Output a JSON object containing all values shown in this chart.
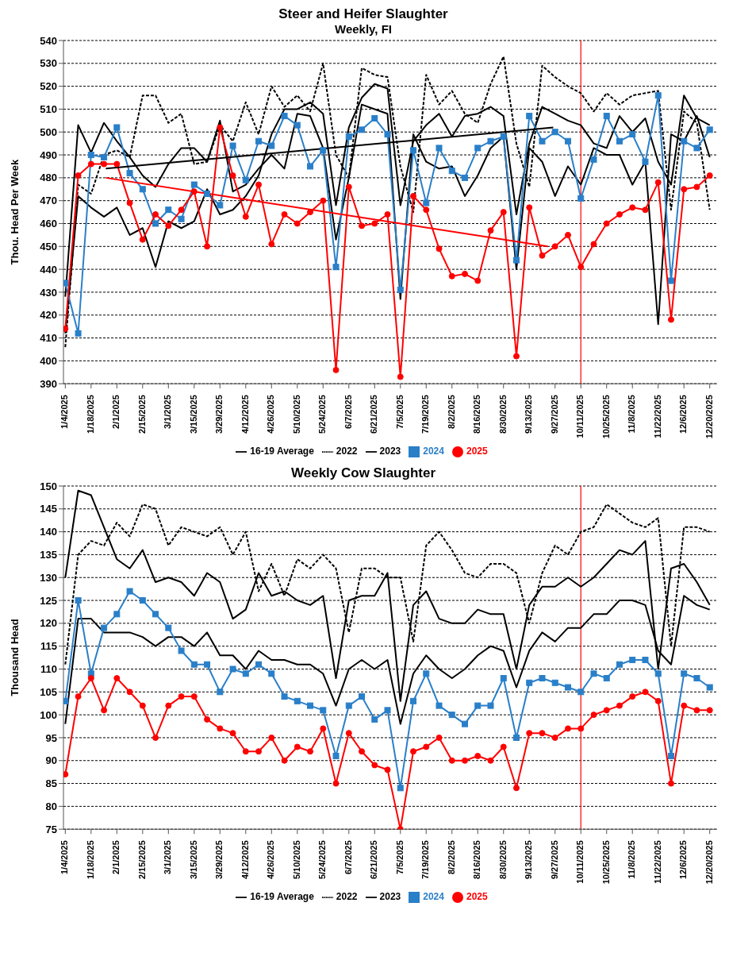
{
  "chart_data": [
    {
      "type": "line",
      "title": "Steer and Heifer Slaughter",
      "subtitle": "Weekly, FI",
      "ylabel": "Thou. Head Per Week",
      "x": [
        "2025-01-04",
        "2025-01-11",
        "2025-01-18",
        "2025-01-25",
        "2025-02-01",
        "2025-02-08",
        "2025-02-15",
        "2025-02-22",
        "2025-03-01",
        "2025-03-08",
        "2025-03-15",
        "2025-03-22",
        "2025-03-29",
        "2025-04-05",
        "2025-04-12",
        "2025-04-19",
        "2025-04-26",
        "2025-05-03",
        "2025-05-10",
        "2025-05-17",
        "2025-05-24",
        "2025-05-31",
        "2025-06-07",
        "2025-06-14",
        "2025-06-21",
        "2025-06-28",
        "2025-07-05",
        "2025-07-12",
        "2025-07-19",
        "2025-07-26",
        "2025-08-02",
        "2025-08-09",
        "2025-08-16",
        "2025-08-23",
        "2025-08-30",
        "2025-09-06",
        "2025-09-13",
        "2025-09-20",
        "2025-09-27",
        "2025-10-04",
        "2025-10-11",
        "2025-10-18",
        "2025-10-25",
        "2025-11-01",
        "2025-11-08",
        "2025-11-15",
        "2025-11-22",
        "2025-11-29",
        "2025-12-06",
        "2025-12-13",
        "2025-12-20"
      ],
      "xlim": [
        "2025-01-03",
        "2025-12-24"
      ],
      "xticks": [
        {
          "value": "2025-01-04",
          "label": "1/4/2025"
        },
        {
          "value": "2025-01-18",
          "label": "1/18/2025"
        },
        {
          "value": "2025-02-01",
          "label": "2/1/2025"
        },
        {
          "value": "2025-02-15",
          "label": "2/15/2025"
        },
        {
          "value": "2025-03-01",
          "label": "3/1/2025"
        },
        {
          "value": "2025-03-15",
          "label": "3/15/2025"
        },
        {
          "value": "2025-03-29",
          "label": "3/29/2025"
        },
        {
          "value": "2025-04-12",
          "label": "4/12/2025"
        },
        {
          "value": "2025-04-26",
          "label": "4/26/2025"
        },
        {
          "value": "2025-05-10",
          "label": "5/10/2025"
        },
        {
          "value": "2025-05-24",
          "label": "5/24/2025"
        },
        {
          "value": "2025-06-07",
          "label": "6/7/2025"
        },
        {
          "value": "2025-06-21",
          "label": "6/21/2025"
        },
        {
          "value": "2025-07-05",
          "label": "7/5/2025"
        },
        {
          "value": "2025-07-19",
          "label": "7/19/2025"
        },
        {
          "value": "2025-08-02",
          "label": "8/2/2025"
        },
        {
          "value": "2025-08-16",
          "label": "8/16/2025"
        },
        {
          "value": "2025-08-30",
          "label": "8/30/2025"
        },
        {
          "value": "2025-09-13",
          "label": "9/13/2025"
        },
        {
          "value": "2025-09-27",
          "label": "9/27/2025"
        },
        {
          "value": "2025-10-11",
          "label": "10/11/2025"
        },
        {
          "value": "2025-10-25",
          "label": "10/25/2025"
        },
        {
          "value": "2025-11-08",
          "label": "11/8/2025"
        },
        {
          "value": "2025-11-22",
          "label": "11/22/2025"
        },
        {
          "value": "2025-12-06",
          "label": "12/6/2025"
        },
        {
          "value": "2025-12-20",
          "label": "12/20/2025"
        }
      ],
      "ylim": [
        390,
        540
      ],
      "yticks": [
        390,
        400,
        410,
        420,
        430,
        440,
        450,
        460,
        470,
        480,
        490,
        500,
        510,
        520,
        530,
        540
      ],
      "grid": "y",
      "legend": "bottom",
      "ref_lines": [
        {
          "axis": "x",
          "value": "2025-10-11",
          "color": "#ff0000"
        }
      ],
      "series": [
        {
          "name": "16-19 Average",
          "color": "#000000",
          "marker": "none",
          "line_style": "solid",
          "values": [
            412,
            472,
            467,
            463,
            467,
            455,
            458,
            441,
            461,
            458,
            461,
            475,
            464,
            466,
            472,
            481,
            499,
            510,
            510,
            513,
            508,
            468,
            502,
            515,
            521,
            519,
            468,
            496,
            503,
            508,
            498,
            507,
            508,
            511,
            507,
            464,
            495,
            511,
            508,
            505,
            503,
            495,
            493,
            507,
            500,
            506,
            487,
            477,
            516,
            506,
            503
          ]
        },
        {
          "name": "2022",
          "color": "#000000",
          "marker": "none",
          "line_style": "dashed",
          "values": [
            406,
            477,
            473,
            490,
            492,
            489,
            516,
            516,
            504,
            508,
            486,
            487,
            503,
            496,
            513,
            499,
            520,
            511,
            516,
            509,
            530,
            490,
            480,
            528,
            525,
            524,
            485,
            465,
            525,
            512,
            518,
            508,
            504,
            521,
            533,
            495,
            476,
            529,
            524,
            520,
            517,
            509,
            517,
            512,
            516,
            517,
            518,
            466,
            509,
            504,
            466
          ]
        },
        {
          "name": "2023",
          "color": "#000000",
          "marker": "none",
          "line_style": "solid",
          "values": [
            428,
            503,
            491,
            504,
            496,
            489,
            481,
            476,
            486,
            493,
            493,
            487,
            505,
            474,
            477,
            484,
            490,
            484,
            508,
            507,
            493,
            453,
            480,
            512,
            510,
            508,
            427,
            499,
            487,
            484,
            485,
            472,
            481,
            493,
            498,
            440,
            493,
            487,
            472,
            485,
            477,
            493,
            490,
            490,
            477,
            487,
            416,
            499,
            496,
            507,
            489
          ]
        },
        {
          "name": "2024",
          "color": "#2a7fc9",
          "marker": "square",
          "line_style": "solid",
          "values": [
            434,
            412,
            490,
            489,
            502,
            482,
            475,
            460,
            466,
            462,
            477,
            473,
            468,
            494,
            479,
            496,
            494,
            507,
            503,
            485,
            492,
            441,
            498,
            501,
            506,
            499,
            431,
            492,
            469,
            493,
            483,
            480,
            493,
            496,
            498,
            444,
            507,
            496,
            500,
            496,
            471,
            488,
            507,
            496,
            499,
            487,
            516,
            435,
            496,
            493,
            501
          ]
        },
        {
          "name": "2025",
          "color": "#ff0000",
          "marker": "circle",
          "line_style": "solid",
          "values": [
            414,
            481,
            486,
            486,
            486,
            469,
            453,
            464,
            459,
            466,
            474,
            450,
            502,
            481,
            463,
            477,
            451,
            464,
            460,
            465,
            470,
            396,
            476,
            459,
            460,
            464,
            393,
            472,
            466,
            449,
            437,
            438,
            435,
            457,
            465,
            402,
            467,
            446,
            450,
            455,
            441,
            451,
            460,
            464,
            467,
            466,
            478,
            418,
            475,
            476,
            481
          ]
        },
        {
          "type": "line",
          "color": "#000000",
          "marker": "none",
          "x": [
            "2025-01-26",
            "2025-09-26"
          ],
          "values": [
            484,
            502
          ]
        },
        {
          "type": "line",
          "color": "#ff0000",
          "marker": "none",
          "x": [
            "2025-01-26",
            "2025-09-23"
          ],
          "values": [
            480,
            450
          ]
        }
      ]
    },
    {
      "type": "line",
      "title": "Weekly Cow Slaughter",
      "ylabel": "Thousand Head",
      "x": [
        "2025-01-04",
        "2025-01-11",
        "2025-01-18",
        "2025-01-25",
        "2025-02-01",
        "2025-02-08",
        "2025-02-15",
        "2025-02-22",
        "2025-03-01",
        "2025-03-08",
        "2025-03-15",
        "2025-03-22",
        "2025-03-29",
        "2025-04-05",
        "2025-04-12",
        "2025-04-19",
        "2025-04-26",
        "2025-05-03",
        "2025-05-10",
        "2025-05-17",
        "2025-05-24",
        "2025-05-31",
        "2025-06-07",
        "2025-06-14",
        "2025-06-21",
        "2025-06-28",
        "2025-07-05",
        "2025-07-12",
        "2025-07-19",
        "2025-07-26",
        "2025-08-02",
        "2025-08-09",
        "2025-08-16",
        "2025-08-23",
        "2025-08-30",
        "2025-09-06",
        "2025-09-13",
        "2025-09-20",
        "2025-09-27",
        "2025-10-04",
        "2025-10-11",
        "2025-10-18",
        "2025-10-25",
        "2025-11-01",
        "2025-11-08",
        "2025-11-15",
        "2025-11-22",
        "2025-11-29",
        "2025-12-06",
        "2025-12-13",
        "2025-12-20"
      ],
      "xlim": [
        "2025-01-03",
        "2025-12-24"
      ],
      "xticks": [
        {
          "value": "2025-01-04",
          "label": "1/4/2025"
        },
        {
          "value": "2025-01-18",
          "label": "1/18/2025"
        },
        {
          "value": "2025-02-01",
          "label": "2/1/2025"
        },
        {
          "value": "2025-02-15",
          "label": "2/15/2025"
        },
        {
          "value": "2025-03-01",
          "label": "3/1/2025"
        },
        {
          "value": "2025-03-15",
          "label": "3/15/2025"
        },
        {
          "value": "2025-03-29",
          "label": "3/29/2025"
        },
        {
          "value": "2025-04-12",
          "label": "4/12/2025"
        },
        {
          "value": "2025-04-26",
          "label": "4/26/2025"
        },
        {
          "value": "2025-05-10",
          "label": "5/10/2025"
        },
        {
          "value": "2025-05-24",
          "label": "5/24/2025"
        },
        {
          "value": "2025-06-07",
          "label": "6/7/2025"
        },
        {
          "value": "2025-06-21",
          "label": "6/21/2025"
        },
        {
          "value": "2025-07-05",
          "label": "7/5/2025"
        },
        {
          "value": "2025-07-19",
          "label": "7/19/2025"
        },
        {
          "value": "2025-08-02",
          "label": "8/2/2025"
        },
        {
          "value": "2025-08-16",
          "label": "8/16/2025"
        },
        {
          "value": "2025-08-30",
          "label": "8/30/2025"
        },
        {
          "value": "2025-09-13",
          "label": "9/13/2025"
        },
        {
          "value": "2025-09-27",
          "label": "9/27/2025"
        },
        {
          "value": "2025-10-11",
          "label": "10/11/2025"
        },
        {
          "value": "2025-10-25",
          "label": "10/25/2025"
        },
        {
          "value": "2025-11-08",
          "label": "11/8/2025"
        },
        {
          "value": "2025-11-22",
          "label": "11/22/2025"
        },
        {
          "value": "2025-12-06",
          "label": "12/6/2025"
        },
        {
          "value": "2025-12-20",
          "label": "12/20/2025"
        }
      ],
      "ylim": [
        75,
        150
      ],
      "yticks": [
        75,
        80,
        85,
        90,
        95,
        100,
        105,
        110,
        115,
        120,
        125,
        130,
        135,
        140,
        145,
        150
      ],
      "grid": "y",
      "legend": "bottom",
      "ref_lines": [
        {
          "axis": "x",
          "value": "2025-10-11",
          "color": "#ff0000"
        }
      ],
      "series": [
        {
          "name": "16-19 Average",
          "color": "#000000",
          "marker": "none",
          "line_style": "solid",
          "values": [
            98,
            121,
            121,
            118,
            118,
            118,
            117,
            115,
            117,
            117,
            115,
            118,
            113,
            113,
            110,
            114,
            112,
            112,
            111,
            111,
            109,
            102,
            110,
            112,
            110,
            112,
            98,
            109,
            113,
            110,
            108,
            110,
            113,
            115,
            114,
            106,
            114,
            118,
            116,
            119,
            119,
            122,
            122,
            125,
            125,
            124,
            114,
            111,
            126,
            124,
            123
          ]
        },
        {
          "name": "2022",
          "color": "#000000",
          "marker": "none",
          "line_style": "dashed",
          "values": [
            111,
            135,
            138,
            137,
            142,
            139,
            146,
            145,
            137,
            141,
            140,
            139,
            141,
            135,
            140,
            127,
            133,
            126,
            134,
            132,
            135,
            132,
            118,
            132,
            132,
            130,
            130,
            116,
            137,
            140,
            136,
            131,
            130,
            133,
            133,
            131,
            120,
            131,
            137,
            135,
            140,
            141,
            146,
            144,
            142,
            141,
            143,
            115,
            141,
            141,
            140
          ]
        },
        {
          "name": "2023",
          "color": "#000000",
          "marker": "none",
          "line_style": "solid",
          "values": [
            130,
            149,
            148,
            141,
            134,
            132,
            136,
            129,
            130,
            129,
            126,
            131,
            129,
            121,
            123,
            131,
            126,
            127,
            125,
            124,
            126,
            108,
            125,
            126,
            126,
            131,
            103,
            124,
            127,
            121,
            120,
            120,
            123,
            122,
            122,
            110,
            124,
            128,
            128,
            130,
            128,
            130,
            133,
            136,
            135,
            138,
            110,
            132,
            133,
            129,
            124
          ]
        },
        {
          "name": "2024",
          "color": "#2a7fc9",
          "marker": "square",
          "line_style": "solid",
          "values": [
            103,
            125,
            109,
            119,
            122,
            127,
            125,
            122,
            119,
            114,
            111,
            111,
            105,
            110,
            109,
            111,
            109,
            104,
            103,
            102,
            101,
            91,
            102,
            104,
            99,
            101,
            84,
            103,
            109,
            102,
            100,
            98,
            102,
            102,
            108,
            95,
            107,
            108,
            107,
            106,
            105,
            109,
            108,
            111,
            112,
            112,
            109,
            91,
            109,
            108,
            106
          ]
        },
        {
          "name": "2025",
          "color": "#ff0000",
          "marker": "circle",
          "line_style": "solid",
          "values": [
            87,
            104,
            108,
            101,
            108,
            105,
            102,
            95,
            102,
            104,
            104,
            99,
            97,
            96,
            92,
            92,
            95,
            90,
            93,
            92,
            97,
            85,
            96,
            92,
            89,
            88,
            75,
            92,
            93,
            95,
            90,
            90,
            91,
            90,
            93,
            84,
            96,
            96,
            95,
            97,
            97,
            100,
            101,
            102,
            104,
            105,
            103,
            85,
            102,
            101,
            101
          ]
        }
      ]
    }
  ]
}
